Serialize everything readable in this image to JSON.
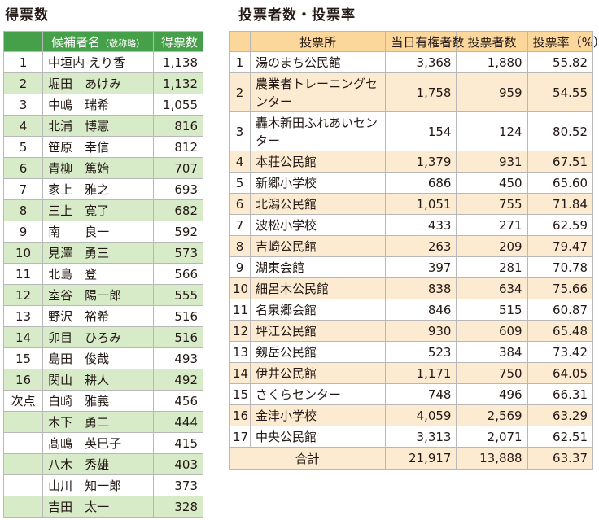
{
  "votes_section": {
    "title": "得票数",
    "headers": {
      "rank": "",
      "name": "候補者名",
      "name_note": "（敬称略）",
      "votes": "得票数"
    },
    "rows": [
      {
        "rank": "1",
        "name": "中垣内 えり香",
        "votes": "1,138"
      },
      {
        "rank": "2",
        "name": "堀田　あけみ",
        "votes": "1,132"
      },
      {
        "rank": "3",
        "name": "中嶋　瑞希",
        "votes": "1,055"
      },
      {
        "rank": "4",
        "name": "北浦　博憲",
        "votes": "816"
      },
      {
        "rank": "5",
        "name": "笹原　幸信",
        "votes": "812"
      },
      {
        "rank": "6",
        "name": "青柳　篤始",
        "votes": "707"
      },
      {
        "rank": "7",
        "name": "家上　雅之",
        "votes": "693"
      },
      {
        "rank": "8",
        "name": "三上　寛了",
        "votes": "682"
      },
      {
        "rank": "9",
        "name": "南　　良一",
        "votes": "592"
      },
      {
        "rank": "10",
        "name": "見澤　勇三",
        "votes": "573"
      },
      {
        "rank": "11",
        "name": "北島　登",
        "votes": "566"
      },
      {
        "rank": "12",
        "name": "室谷　陽一郎",
        "votes": "555"
      },
      {
        "rank": "13",
        "name": "野沢　裕希",
        "votes": "516"
      },
      {
        "rank": "14",
        "name": "卯目　ひろみ",
        "votes": "516"
      },
      {
        "rank": "15",
        "name": "島田　俊哉",
        "votes": "493"
      },
      {
        "rank": "16",
        "name": "関山　耕人",
        "votes": "492"
      },
      {
        "rank": "次点",
        "name": "白崎　雅義",
        "votes": "456"
      },
      {
        "rank": "",
        "name": "木下　勇二",
        "votes": "444"
      },
      {
        "rank": "",
        "name": "髙嶋　英巳子",
        "votes": "415"
      },
      {
        "rank": "",
        "name": "八木　秀雄",
        "votes": "403"
      },
      {
        "rank": "",
        "name": "山川　知一郎",
        "votes": "373"
      },
      {
        "rank": "",
        "name": "吉田　太一",
        "votes": "328"
      }
    ]
  },
  "turnout_section": {
    "title": "投票者数・投票率",
    "headers": {
      "no": "",
      "place": "投票所",
      "eligible": "当日有権者数",
      "voters": "投票者数",
      "rate": "投票率（%）"
    },
    "rows": [
      {
        "no": "1",
        "place": "湯のまち公民館",
        "eligible": "3,368",
        "voters": "1,880",
        "rate": "55.82"
      },
      {
        "no": "2",
        "place": "農業者トレーニングセンター",
        "eligible": "1,758",
        "voters": "959",
        "rate": "54.55"
      },
      {
        "no": "3",
        "place": "轟木新田ふれあいセンター",
        "eligible": "154",
        "voters": "124",
        "rate": "80.52"
      },
      {
        "no": "4",
        "place": "本荘公民館",
        "eligible": "1,379",
        "voters": "931",
        "rate": "67.51"
      },
      {
        "no": "5",
        "place": "新郷小学校",
        "eligible": "686",
        "voters": "450",
        "rate": "65.60"
      },
      {
        "no": "6",
        "place": "北潟公民館",
        "eligible": "1,051",
        "voters": "755",
        "rate": "71.84"
      },
      {
        "no": "7",
        "place": "波松小学校",
        "eligible": "433",
        "voters": "271",
        "rate": "62.59"
      },
      {
        "no": "8",
        "place": "吉崎公民館",
        "eligible": "263",
        "voters": "209",
        "rate": "79.47"
      },
      {
        "no": "9",
        "place": "湖東会館",
        "eligible": "397",
        "voters": "281",
        "rate": "70.78"
      },
      {
        "no": "10",
        "place": "細呂木公民館",
        "eligible": "838",
        "voters": "634",
        "rate": "75.66"
      },
      {
        "no": "11",
        "place": "名泉郷会館",
        "eligible": "846",
        "voters": "515",
        "rate": "60.87"
      },
      {
        "no": "12",
        "place": "坪江公民館",
        "eligible": "930",
        "voters": "609",
        "rate": "65.48"
      },
      {
        "no": "13",
        "place": "剱岳公民館",
        "eligible": "523",
        "voters": "384",
        "rate": "73.42"
      },
      {
        "no": "14",
        "place": "伊井公民館",
        "eligible": "1,171",
        "voters": "750",
        "rate": "64.05"
      },
      {
        "no": "15",
        "place": "さくらセンター",
        "eligible": "748",
        "voters": "496",
        "rate": "66.31"
      },
      {
        "no": "16",
        "place": "金津小学校",
        "eligible": "4,059",
        "voters": "2,569",
        "rate": "63.29"
      },
      {
        "no": "17",
        "place": "中央公民館",
        "eligible": "3,313",
        "voters": "2,071",
        "rate": "62.51"
      }
    ],
    "total": {
      "label": "合計",
      "eligible": "21,917",
      "voters": "13,888",
      "rate": "63.37"
    }
  }
}
